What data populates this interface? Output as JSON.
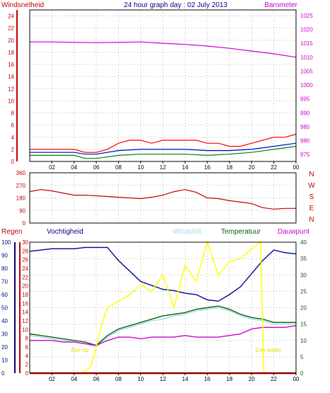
{
  "title": "24 hour graph day : 02 July 2013",
  "x_ticks": [
    "02",
    "04",
    "06",
    "08",
    "10",
    "12",
    "14",
    "16",
    "18",
    "20",
    "22",
    "00"
  ],
  "colors": {
    "frame": "#000000",
    "grid": "#b4b4b4",
    "windspeed_axis": "#c00000",
    "barometer_axis": "#cc00cc",
    "humidity_axis": "#000080",
    "temperature_axis": "#006400",
    "rain_axis": "#c00000",
    "wind_gust": "#ff0000",
    "wind_avg": "#0000cc",
    "wind_speed": "#008000",
    "barometer": "#cc00cc",
    "direction": "#c00000",
    "humidity": "#000099",
    "windchill": "#a8d8e8",
    "temperature": "#006400",
    "dewpoint": "#cc00cc",
    "solar": "#ffff00",
    "rain": "#ff0000"
  },
  "chart_data": [
    {
      "type": "line",
      "title": "24 hour graph day : 02 July 2013",
      "ylabel_left": "Windsnelheid",
      "ylabel_right": "Barometer",
      "left_axis": {
        "ticks": [
          24,
          22,
          20,
          18,
          16,
          14,
          12,
          10,
          8,
          6,
          4,
          2,
          0
        ],
        "range": [
          0,
          25
        ]
      },
      "right_axis": {
        "ticks": [
          1025,
          1020,
          1015,
          1010,
          1005,
          1000,
          995,
          990,
          985,
          980,
          975
        ],
        "range": [
          972.5,
          1027
        ]
      },
      "x_range_hours": [
        0,
        24
      ],
      "grid": true,
      "series": [
        {
          "key": "wind_gust",
          "axis": "left",
          "values": [
            [
              0,
              2.0
            ],
            [
              1,
              2.0
            ],
            [
              2,
              2.0
            ],
            [
              3,
              2.0
            ],
            [
              4,
              2.0
            ],
            [
              5,
              1.5
            ],
            [
              6,
              1.5
            ],
            [
              7,
              2.0
            ],
            [
              8,
              3.0
            ],
            [
              9,
              3.5
            ],
            [
              10,
              3.5
            ],
            [
              11,
              3.0
            ],
            [
              12,
              3.5
            ],
            [
              13,
              3.5
            ],
            [
              14,
              3.5
            ],
            [
              15,
              3.5
            ],
            [
              16,
              3.0
            ],
            [
              17,
              3.0
            ],
            [
              18,
              2.5
            ],
            [
              19,
              2.5
            ],
            [
              20,
              3.0
            ],
            [
              21,
              3.5
            ],
            [
              22,
              4.0
            ],
            [
              23,
              4.0
            ],
            [
              24,
              4.5
            ]
          ]
        },
        {
          "key": "wind_avg",
          "axis": "left",
          "values": [
            [
              0,
              1.5
            ],
            [
              2,
              1.5
            ],
            [
              4,
              1.5
            ],
            [
              5,
              1.2
            ],
            [
              6,
              1.2
            ],
            [
              8,
              1.8
            ],
            [
              10,
              2.0
            ],
            [
              12,
              2.0
            ],
            [
              14,
              2.0
            ],
            [
              16,
              1.8
            ],
            [
              18,
              1.8
            ],
            [
              20,
              2.0
            ],
            [
              22,
              2.5
            ],
            [
              24,
              3.0
            ]
          ]
        },
        {
          "key": "wind_speed",
          "axis": "left",
          "values": [
            [
              0,
              1.0
            ],
            [
              2,
              1.0
            ],
            [
              4,
              1.0
            ],
            [
              5,
              0.5
            ],
            [
              6,
              0.5
            ],
            [
              8,
              1.0
            ],
            [
              10,
              1.2
            ],
            [
              12,
              1.2
            ],
            [
              14,
              1.2
            ],
            [
              16,
              1.0
            ],
            [
              18,
              1.2
            ],
            [
              20,
              1.5
            ],
            [
              22,
              2.0
            ],
            [
              24,
              2.5
            ]
          ]
        },
        {
          "key": "barometer",
          "axis": "right",
          "values": [
            [
              0,
              1015.5
            ],
            [
              2,
              1015.5
            ],
            [
              4,
              1015.3
            ],
            [
              6,
              1015.2
            ],
            [
              8,
              1015.3
            ],
            [
              10,
              1015.5
            ],
            [
              12,
              1015.0
            ],
            [
              14,
              1014.6
            ],
            [
              16,
              1014.0
            ],
            [
              18,
              1013.2
            ],
            [
              20,
              1012.2
            ],
            [
              22,
              1011.2
            ],
            [
              24,
              1010.0
            ]
          ]
        }
      ]
    },
    {
      "type": "line",
      "ylabel_right": [
        "N",
        "W",
        "S",
        "E",
        "N"
      ],
      "left_axis": {
        "ticks": [
          360,
          270,
          180,
          90,
          0
        ],
        "range": [
          0,
          360
        ]
      },
      "x_range_hours": [
        0,
        24
      ],
      "grid": true,
      "series": [
        {
          "key": "direction",
          "axis": "left",
          "values": [
            [
              0,
              225
            ],
            [
              1,
              240
            ],
            [
              2,
              230
            ],
            [
              3,
              215
            ],
            [
              4,
              200
            ],
            [
              5,
              200
            ],
            [
              6,
              195
            ],
            [
              7,
              190
            ],
            [
              8,
              185
            ],
            [
              9,
              180
            ],
            [
              10,
              175
            ],
            [
              11,
              185
            ],
            [
              12,
              200
            ],
            [
              13,
              225
            ],
            [
              14,
              240
            ],
            [
              15,
              220
            ],
            [
              16,
              180
            ],
            [
              17,
              175
            ],
            [
              18,
              160
            ],
            [
              19,
              150
            ],
            [
              20,
              140
            ],
            [
              21,
              110
            ],
            [
              22,
              100
            ],
            [
              23,
              105
            ],
            [
              24,
              105
            ]
          ]
        }
      ]
    },
    {
      "type": "line",
      "labels_top": [
        "Regen",
        "Vochtigheid",
        "Windchill",
        "Temperatuur",
        "Dauwpunt"
      ],
      "rain_axis": {
        "ticks": [
          30,
          28,
          26,
          24,
          22,
          20,
          18,
          16,
          14,
          12,
          10,
          8,
          6,
          4,
          2,
          0
        ],
        "range": [
          0,
          30
        ]
      },
      "humidity_axis": {
        "ticks": [
          100,
          90,
          80,
          70,
          60,
          50,
          40,
          30,
          20,
          10,
          0
        ],
        "range": [
          0,
          100
        ]
      },
      "temperature_axis": {
        "ticks": [
          40,
          35,
          30,
          25,
          20,
          15,
          10,
          5,
          0
        ],
        "range": [
          0,
          40
        ]
      },
      "x_range_hours": [
        0,
        24
      ],
      "grid": true,
      "annotations": [
        {
          "text": "Zon op",
          "x": 4.5,
          "y_temp": 6.5
        },
        {
          "text": "Zon onder",
          "x": 21.5,
          "y_temp": 6.5
        }
      ],
      "series": [
        {
          "key": "humidity",
          "axis": "humidity",
          "values": [
            [
              0,
              93
            ],
            [
              1,
              94
            ],
            [
              2,
              95
            ],
            [
              3,
              95
            ],
            [
              4,
              95
            ],
            [
              5,
              96
            ],
            [
              6,
              96
            ],
            [
              7,
              96
            ],
            [
              8,
              86
            ],
            [
              9,
              78
            ],
            [
              10,
              70
            ],
            [
              11,
              67
            ],
            [
              12,
              64
            ],
            [
              13,
              63
            ],
            [
              14,
              61
            ],
            [
              15,
              60
            ],
            [
              16,
              56
            ],
            [
              17,
              55
            ],
            [
              18,
              60
            ],
            [
              19,
              66
            ],
            [
              20,
              76
            ],
            [
              21,
              86
            ],
            [
              22,
              94
            ],
            [
              23,
              92
            ],
            [
              24,
              91
            ]
          ]
        },
        {
          "key": "windchill",
          "axis": "temperature",
          "values": [
            [
              0,
              11.5
            ],
            [
              1,
              11.0
            ],
            [
              2,
              10.5
            ],
            [
              3,
              10.0
            ],
            [
              4,
              9.5
            ],
            [
              5,
              9.0
            ],
            [
              6,
              8.0
            ],
            [
              7,
              11.0
            ],
            [
              8,
              13.0
            ],
            [
              9,
              14.0
            ],
            [
              10,
              15.0
            ],
            [
              11,
              16.0
            ],
            [
              12,
              16.5
            ],
            [
              13,
              17.5
            ],
            [
              14,
              18.0
            ],
            [
              15,
              19.0
            ],
            [
              16,
              19.5
            ],
            [
              17,
              20.0
            ],
            [
              18,
              19.0
            ],
            [
              19,
              17.5
            ],
            [
              20,
              16.5
            ],
            [
              21,
              16.0
            ],
            [
              22,
              15.0
            ],
            [
              23,
              15.0
            ],
            [
              24,
              15.0
            ]
          ]
        },
        {
          "key": "temperature",
          "axis": "temperature",
          "values": [
            [
              0,
              12.0
            ],
            [
              1,
              11.5
            ],
            [
              2,
              11.0
            ],
            [
              3,
              10.5
            ],
            [
              4,
              10.0
            ],
            [
              5,
              9.5
            ],
            [
              6,
              8.5
            ],
            [
              7,
              11.5
            ],
            [
              8,
              13.5
            ],
            [
              9,
              14.5
            ],
            [
              10,
              15.5
            ],
            [
              11,
              16.5
            ],
            [
              12,
              17.5
            ],
            [
              13,
              18.0
            ],
            [
              14,
              18.5
            ],
            [
              15,
              19.5
            ],
            [
              16,
              20.0
            ],
            [
              17,
              20.5
            ],
            [
              18,
              19.5
            ],
            [
              19,
              18.0
            ],
            [
              20,
              17.0
            ],
            [
              21,
              16.5
            ],
            [
              22,
              15.5
            ],
            [
              23,
              15.5
            ],
            [
              24,
              15.5
            ]
          ]
        },
        {
          "key": "dewpoint",
          "axis": "temperature",
          "values": [
            [
              0,
              10.0
            ],
            [
              1,
              10.0
            ],
            [
              2,
              10.0
            ],
            [
              3,
              9.5
            ],
            [
              4,
              9.5
            ],
            [
              5,
              9.0
            ],
            [
              6,
              8.5
            ],
            [
              7,
              10.0
            ],
            [
              8,
              11.0
            ],
            [
              9,
              11.0
            ],
            [
              10,
              10.5
            ],
            [
              11,
              11.0
            ],
            [
              12,
              11.0
            ],
            [
              13,
              11.0
            ],
            [
              14,
              11.5
            ],
            [
              15,
              11.0
            ],
            [
              16,
              11.0
            ],
            [
              17,
              11.0
            ],
            [
              18,
              11.5
            ],
            [
              19,
              12.0
            ],
            [
              20,
              13.5
            ],
            [
              21,
              14.0
            ],
            [
              22,
              14.0
            ],
            [
              23,
              14.0
            ],
            [
              24,
              14.5
            ]
          ]
        },
        {
          "key": "solar",
          "axis": "temperature",
          "values": [
            [
              0,
              0
            ],
            [
              4.7,
              0
            ],
            [
              5.5,
              2
            ],
            [
              6,
              8
            ],
            [
              6.5,
              15
            ],
            [
              7,
              20
            ],
            [
              8,
              22
            ],
            [
              9,
              24
            ],
            [
              10,
              27
            ],
            [
              11,
              25
            ],
            [
              12,
              30
            ],
            [
              13,
              20
            ],
            [
              14,
              33
            ],
            [
              15,
              28
            ],
            [
              16,
              40
            ],
            [
              17,
              30
            ],
            [
              18,
              34
            ],
            [
              19,
              35
            ],
            [
              20,
              38
            ],
            [
              20.8,
              40
            ],
            [
              21.1,
              0
            ],
            [
              24,
              0
            ]
          ]
        },
        {
          "key": "rain",
          "axis": "rain",
          "values": [
            [
              0,
              0
            ],
            [
              24,
              0
            ]
          ]
        }
      ]
    }
  ]
}
